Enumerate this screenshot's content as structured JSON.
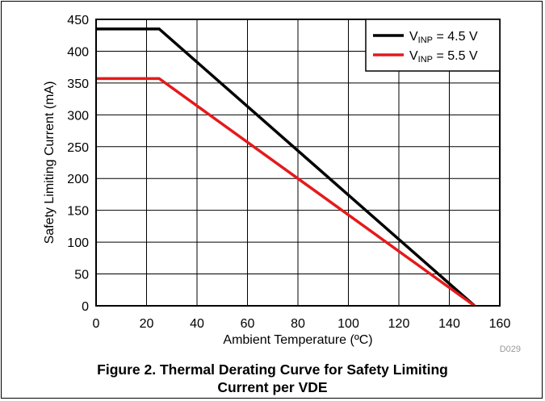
{
  "chart_data": {
    "type": "line",
    "xlabel": "Ambient Temperature (ºC)",
    "ylabel": "Safety Limiting Current (mA)",
    "xlim": [
      0,
      160
    ],
    "ylim": [
      0,
      450
    ],
    "xticks": [
      "0",
      "20",
      "40",
      "60",
      "80",
      "100",
      "120",
      "140",
      "160"
    ],
    "yticks": [
      "0",
      "50",
      "100",
      "150",
      "200",
      "250",
      "300",
      "350",
      "400",
      "450"
    ],
    "grid": true,
    "legend_position": "top-right",
    "series": [
      {
        "name_main": "V",
        "name_sub": "INP",
        "name_rest": " = 4.5 V",
        "color": "#000000",
        "x": [
          0,
          25,
          150
        ],
        "y": [
          435,
          435,
          0
        ]
      },
      {
        "name_main": "V",
        "name_sub": "INP",
        "name_rest": " = 5.5 V",
        "color": "#e41a1c",
        "x": [
          0,
          25,
          150
        ],
        "y": [
          357,
          357,
          0
        ]
      }
    ],
    "figure_id": "D029"
  },
  "caption": {
    "line1": "Figure 2. Thermal Derating Curve for Safety Limiting",
    "line2": "Current per VDE"
  }
}
